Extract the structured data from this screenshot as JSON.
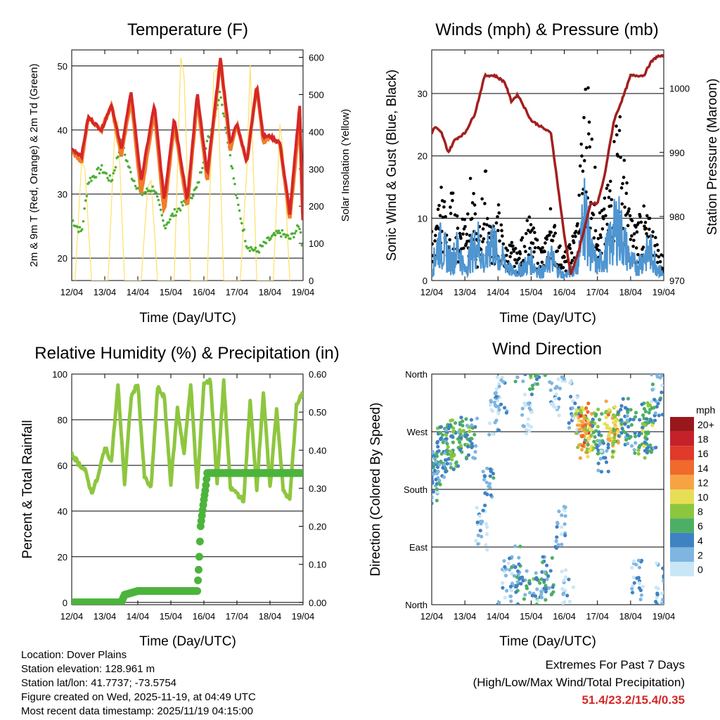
{
  "info": {
    "location": "Location: Dover Plains",
    "elevation": "Station elevation: 128.961 m",
    "latlon": "Station lat/lon: 41.7737; -73.5754",
    "created": "Figure created on Wed, 2025-11-19, at 04:49 UTC",
    "recent": "Most recent data timestamp: 2025/11/19 04:15:00"
  },
  "extremes": {
    "title": "Extremes For Past 7 Days",
    "subtitle": "(High/Low/Max Wind/Total Precipitation)",
    "values": "51.4/23.2/15.4/0.35",
    "color": "#d62728"
  },
  "chart_data": [
    {
      "id": "temperature",
      "type": "line",
      "title": "Temperature (F)",
      "xlabel": "Time (Day/UTC)",
      "ylabel": "2m & 9m T (Red, Orange) & 2m Td (Green)",
      "y2label": "Solar Insolation (Yellow)",
      "categories": [
        "12/04",
        "13/04",
        "14/04",
        "15/04",
        "16/04",
        "17/04",
        "18/04",
        "19/04"
      ],
      "xlim": [
        0,
        7
      ],
      "ylim": [
        16.5,
        52.5
      ],
      "y_ticks": [
        20,
        30,
        40,
        50
      ],
      "y2lim": [
        0,
        620
      ],
      "y2_ticks": [
        0,
        100,
        200,
        300,
        400,
        500,
        600
      ],
      "series": [
        {
          "name": "9m T",
          "axis": "left",
          "color": "#f07d2a",
          "x": [
            0,
            0.3,
            0.5,
            0.9,
            1.2,
            1.5,
            1.8,
            2.1,
            2.5,
            2.8,
            3.1,
            3.5,
            3.8,
            4.1,
            4.5,
            4.8,
            5.0,
            5.3,
            5.6,
            5.8,
            6.0,
            6.3,
            6.6,
            6.9,
            7.0
          ],
          "values": [
            37,
            35,
            42,
            40,
            44,
            36,
            45,
            30,
            43,
            27,
            41,
            28,
            45,
            32,
            51,
            37,
            41,
            35,
            47,
            38,
            39,
            38,
            26,
            42,
            25
          ]
        },
        {
          "name": "2m T",
          "axis": "left",
          "color": "#d62728",
          "x": [
            0,
            0.3,
            0.5,
            0.9,
            1.2,
            1.5,
            1.8,
            2.1,
            2.5,
            2.8,
            3.1,
            3.5,
            3.8,
            4.1,
            4.5,
            4.8,
            5.0,
            5.3,
            5.6,
            5.8,
            6.0,
            6.3,
            6.6,
            6.9,
            7.0
          ],
          "values": [
            37,
            36,
            42,
            40,
            44,
            37,
            46,
            32,
            44,
            29,
            42,
            29,
            46,
            33,
            51,
            38,
            41,
            35,
            47,
            39,
            39,
            38,
            27,
            44,
            24
          ]
        },
        {
          "name": "2m Td",
          "axis": "left",
          "color": "#4caf32",
          "x": [
            0,
            0.3,
            0.5,
            0.9,
            1.2,
            1.5,
            1.8,
            2.1,
            2.5,
            2.8,
            3.1,
            3.5,
            3.8,
            4.1,
            4.5,
            4.8,
            5.0,
            5.3,
            5.6,
            5.8,
            6.0,
            6.3,
            6.6,
            6.9,
            7.0
          ],
          "values": [
            26,
            24,
            32,
            34,
            32,
            38,
            33,
            30,
            31,
            25,
            27,
            29,
            31,
            38,
            46,
            36,
            29,
            22,
            21,
            22,
            23,
            24,
            23,
            25,
            21
          ]
        },
        {
          "name": "Solar Insolation",
          "axis": "right",
          "color": "#ffe066",
          "x": [
            0.1,
            0.3,
            0.4,
            0.6,
            1.1,
            1.3,
            1.4,
            1.6,
            2.1,
            2.3,
            2.4,
            2.6,
            3.1,
            3.3,
            3.4,
            3.6,
            4.1,
            4.3,
            4.4,
            4.6,
            5.1,
            5.3,
            5.4,
            5.6,
            6.1,
            6.3,
            6.4,
            6.6
          ],
          "values": [
            0,
            320,
            300,
            0,
            0,
            400,
            430,
            0,
            0,
            250,
            270,
            0,
            0,
            600,
            550,
            0,
            0,
            560,
            570,
            0,
            0,
            300,
            580,
            0,
            0,
            420,
            350,
            0
          ]
        }
      ]
    },
    {
      "id": "winds",
      "type": "scatter",
      "title": "Winds (mph) & Pressure (mb)",
      "xlabel": "Time (Day/UTC)",
      "ylabel": "Sonic Wind & Gust (Blue, Black)",
      "y2label": "Station Pressure (Maroon)",
      "categories": [
        "12/04",
        "13/04",
        "14/04",
        "15/04",
        "16/04",
        "17/04",
        "18/04",
        "19/04"
      ],
      "xlim": [
        0,
        7
      ],
      "ylim": [
        0,
        37
      ],
      "y_ticks": [
        0,
        10,
        20,
        30
      ],
      "y2lim": [
        970,
        1006
      ],
      "y2_ticks": [
        970,
        980,
        990,
        1000
      ],
      "series": [
        {
          "name": "Gust",
          "axis": "left",
          "color": "#000000",
          "x": [
            0.1,
            0.2,
            0.3,
            0.5,
            0.6,
            0.8,
            1.0,
            1.2,
            1.4,
            1.6,
            1.8,
            2.0,
            2.2,
            2.4,
            2.6,
            2.9,
            3.2,
            3.4,
            3.6,
            3.8,
            4.0,
            4.2,
            4.4,
            4.5,
            4.6,
            4.7,
            4.9,
            5.1,
            5.3,
            5.5,
            5.6,
            5.7,
            5.9,
            6.1,
            6.3,
            6.5,
            6.7,
            6.9
          ],
          "values": [
            8,
            12,
            16,
            7,
            14,
            9,
            12,
            16,
            6,
            18,
            8,
            12,
            5,
            6,
            4,
            10,
            6,
            5,
            12,
            6,
            4,
            6,
            10,
            20,
            28,
            34,
            18,
            10,
            14,
            22,
            30,
            24,
            14,
            8,
            12,
            10,
            8,
            4
          ]
        },
        {
          "name": "Sonic Wind",
          "axis": "left",
          "color": "#4f95d0",
          "x": [
            0,
            0.2,
            0.4,
            0.6,
            0.8,
            1.0,
            1.2,
            1.4,
            1.6,
            1.8,
            2.0,
            2.2,
            2.4,
            2.6,
            2.8,
            3.0,
            3.2,
            3.4,
            3.6,
            3.8,
            4.0,
            4.2,
            4.4,
            4.5,
            4.6,
            4.8,
            5.0,
            5.2,
            5.4,
            5.6,
            5.8,
            6.0,
            6.2,
            6.4,
            6.6,
            6.8,
            7.0
          ],
          "values": [
            2,
            8,
            6,
            4,
            7,
            2,
            6,
            8,
            3,
            9,
            5,
            4,
            2,
            2,
            3,
            4,
            2,
            2,
            5,
            2,
            1,
            2,
            4,
            8,
            15,
            6,
            3,
            5,
            8,
            12,
            8,
            4,
            3,
            5,
            6,
            3,
            1
          ]
        },
        {
          "name": "Station Pressure",
          "axis": "right",
          "color": "#a31f1f",
          "x": [
            0,
            0.1,
            0.3,
            0.5,
            0.7,
            1.0,
            1.3,
            1.6,
            1.9,
            2.2,
            2.4,
            2.6,
            2.8,
            3.0,
            3.3,
            3.6,
            3.8,
            4.0,
            4.2,
            4.4,
            4.6,
            4.8,
            5.0,
            5.2,
            5.5,
            5.8,
            6.0,
            6.2,
            6.4,
            6.6,
            6.8,
            7.0
          ],
          "values": [
            993,
            994,
            993,
            990,
            992,
            993,
            996,
            1002,
            1002,
            1001,
            998,
            999,
            997,
            995,
            994,
            993,
            985,
            977,
            971,
            974,
            978,
            982,
            982,
            986,
            995,
            999,
            1002,
            1002,
            1002,
            1004,
            1005,
            1005
          ]
        }
      ]
    },
    {
      "id": "humidity",
      "type": "line",
      "title": "Relative Humidity (%) & Precipitation (in)",
      "xlabel": "Time (Day/UTC)",
      "ylabel": "Percent & Total Rainfall",
      "categories": [
        "12/04",
        "13/04",
        "14/04",
        "15/04",
        "16/04",
        "17/04",
        "18/04",
        "19/04"
      ],
      "xlim": [
        0,
        7
      ],
      "ylim": [
        -1,
        100
      ],
      "y_ticks": [
        0,
        20,
        40,
        60,
        80,
        100
      ],
      "y2lim": [
        -0.006,
        0.6
      ],
      "y2_ticks": [
        "0.00",
        "0.10",
        "0.20",
        "0.30",
        "0.40",
        "0.50",
        "0.60"
      ],
      "series": [
        {
          "name": "Relative Humidity",
          "axis": "left",
          "color": "#8ec63f",
          "x": [
            0,
            0.2,
            0.4,
            0.6,
            0.8,
            1.0,
            1.2,
            1.4,
            1.6,
            1.8,
            2.0,
            2.2,
            2.4,
            2.6,
            2.8,
            3.0,
            3.2,
            3.4,
            3.6,
            3.8,
            4.0,
            4.2,
            4.4,
            4.6,
            4.8,
            5.0,
            5.2,
            5.4,
            5.6,
            5.8,
            6.0,
            6.2,
            6.4,
            6.6,
            6.8,
            7.0
          ],
          "values": [
            65,
            61,
            58,
            48,
            55,
            68,
            62,
            95,
            52,
            90,
            96,
            55,
            50,
            94,
            90,
            52,
            85,
            65,
            96,
            50,
            96,
            97,
            52,
            97,
            50,
            48,
            44,
            88,
            50,
            92,
            50,
            85,
            49,
            45,
            86,
            92
          ]
        },
        {
          "name": "Total Precipitation",
          "axis": "right",
          "color": "#4cb43c",
          "x": [
            0,
            1.5,
            1.6,
            2.0,
            3.8,
            3.85,
            3.9,
            4.0,
            4.05,
            4.1,
            7.0
          ],
          "values": [
            0,
            0,
            0.02,
            0.03,
            0.03,
            0.1,
            0.2,
            0.27,
            0.3,
            0.34,
            0.34
          ]
        }
      ]
    },
    {
      "id": "direction",
      "type": "scatter",
      "title": "Wind Direction",
      "xlabel": "Time (Day/UTC)",
      "ylabel": "Direction (Colored By Speed)",
      "categories": [
        "12/04",
        "13/04",
        "14/04",
        "15/04",
        "16/04",
        "17/04",
        "18/04",
        "19/04"
      ],
      "xlim": [
        0,
        7
      ],
      "ylim": [
        0,
        360
      ],
      "y_ticks": [
        "North",
        "East",
        "South",
        "West",
        "North"
      ],
      "legend": {
        "unit": "mph",
        "labels": [
          "20+",
          "18",
          "16",
          "14",
          "12",
          "10",
          "8",
          "6",
          "4",
          "2",
          "0"
        ],
        "colors": [
          "#99171b",
          "#c5212a",
          "#df3a2a",
          "#ef6a2c",
          "#f7a343",
          "#e8de55",
          "#8cc63f",
          "#4caf64",
          "#3f82c2",
          "#7fb5df",
          "#c9e6f7"
        ]
      },
      "series": [
        {
          "name": "Direction",
          "axis": "left",
          "x": [
            0.05,
            0.15,
            0.25,
            0.35,
            0.5,
            0.6,
            0.8,
            1.0,
            1.2,
            1.5,
            1.7,
            1.9,
            2.1,
            2.3,
            2.5,
            2.7,
            2.9,
            3.1,
            3.3,
            3.5,
            3.7,
            3.9,
            4.1,
            4.3,
            4.5,
            4.6,
            4.7,
            4.8,
            5.0,
            5.2,
            5.4,
            5.5,
            5.6,
            5.8,
            6.0,
            6.2,
            6.4,
            6.5,
            6.6,
            6.8,
            6.9
          ],
          "values": [
            190,
            210,
            230,
            250,
            240,
            255,
            245,
            265,
            260,
            120,
            180,
            300,
            330,
            40,
            60,
            20,
            300,
            10,
            30,
            40,
            330,
            120,
            20,
            300,
            275,
            260,
            280,
            265,
            270,
            240,
            285,
            275,
            265,
            290,
            270,
            40,
            260,
            280,
            270,
            330,
            30
          ],
          "speeds": [
            3,
            4,
            4,
            5,
            4,
            6,
            5,
            6,
            4,
            2,
            3,
            1,
            2,
            1,
            3,
            4,
            1,
            5,
            3,
            4,
            1,
            2,
            1,
            2,
            10,
            14,
            12,
            8,
            6,
            3,
            10,
            12,
            8,
            5,
            4,
            2,
            6,
            7,
            5,
            3,
            2
          ]
        }
      ]
    }
  ]
}
